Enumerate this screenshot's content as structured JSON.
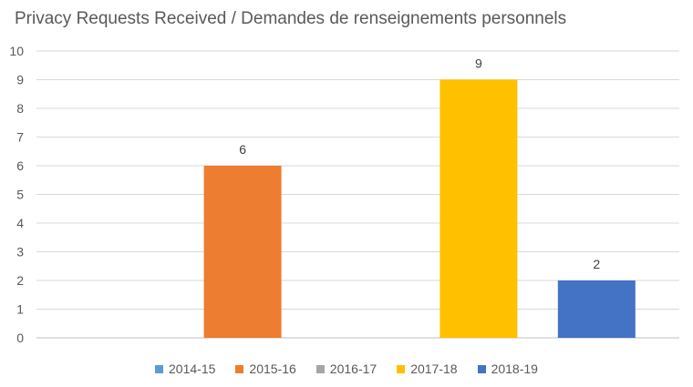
{
  "chart_data": {
    "type": "bar",
    "title": "Privacy Requests Received / Demandes de renseignements personnels",
    "xlabel": "",
    "ylabel": "",
    "ylim": [
      0,
      10
    ],
    "yticks": [
      0,
      1,
      2,
      3,
      4,
      5,
      6,
      7,
      8,
      9,
      10
    ],
    "grid": true,
    "legend_position": "bottom",
    "series": [
      {
        "name": "2014-15",
        "value": 0,
        "color": "#5B9BD5"
      },
      {
        "name": "2015-16",
        "value": 6,
        "color": "#ED7D31"
      },
      {
        "name": "2016-17",
        "value": 0,
        "color": "#A5A5A5"
      },
      {
        "name": "2017-18",
        "value": 9,
        "color": "#FFC000"
      },
      {
        "name": "2018-19",
        "value": 2,
        "color": "#4472C4"
      }
    ]
  }
}
